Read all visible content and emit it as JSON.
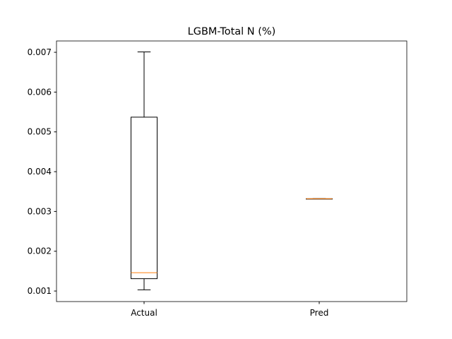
{
  "chart_data": {
    "type": "box",
    "title": "LGBM-Total N (%)",
    "xlabel": "",
    "ylabel": "",
    "categories": [
      "Actual",
      "Pred"
    ],
    "boxes": [
      {
        "label": "Actual",
        "whisker_low": 0.00103,
        "q1": 0.00131,
        "median": 0.00146,
        "q3": 0.00537,
        "whisker_high": 0.00701
      },
      {
        "label": "Pred",
        "whisker_low": 0.00332,
        "q1": 0.00332,
        "median": 0.00332,
        "q3": 0.00332,
        "whisker_high": 0.00332
      }
    ],
    "ylim": [
      0.000735,
      0.007285
    ],
    "yticks": [
      0.001,
      0.002,
      0.003,
      0.004,
      0.005,
      0.006,
      0.007
    ],
    "ytick_labels": [
      "0.001",
      "0.002",
      "0.003",
      "0.004",
      "0.005",
      "0.006",
      "0.007"
    ],
    "grid": false,
    "colors": {
      "box": "#000000",
      "median": "#ff7f0e"
    }
  }
}
